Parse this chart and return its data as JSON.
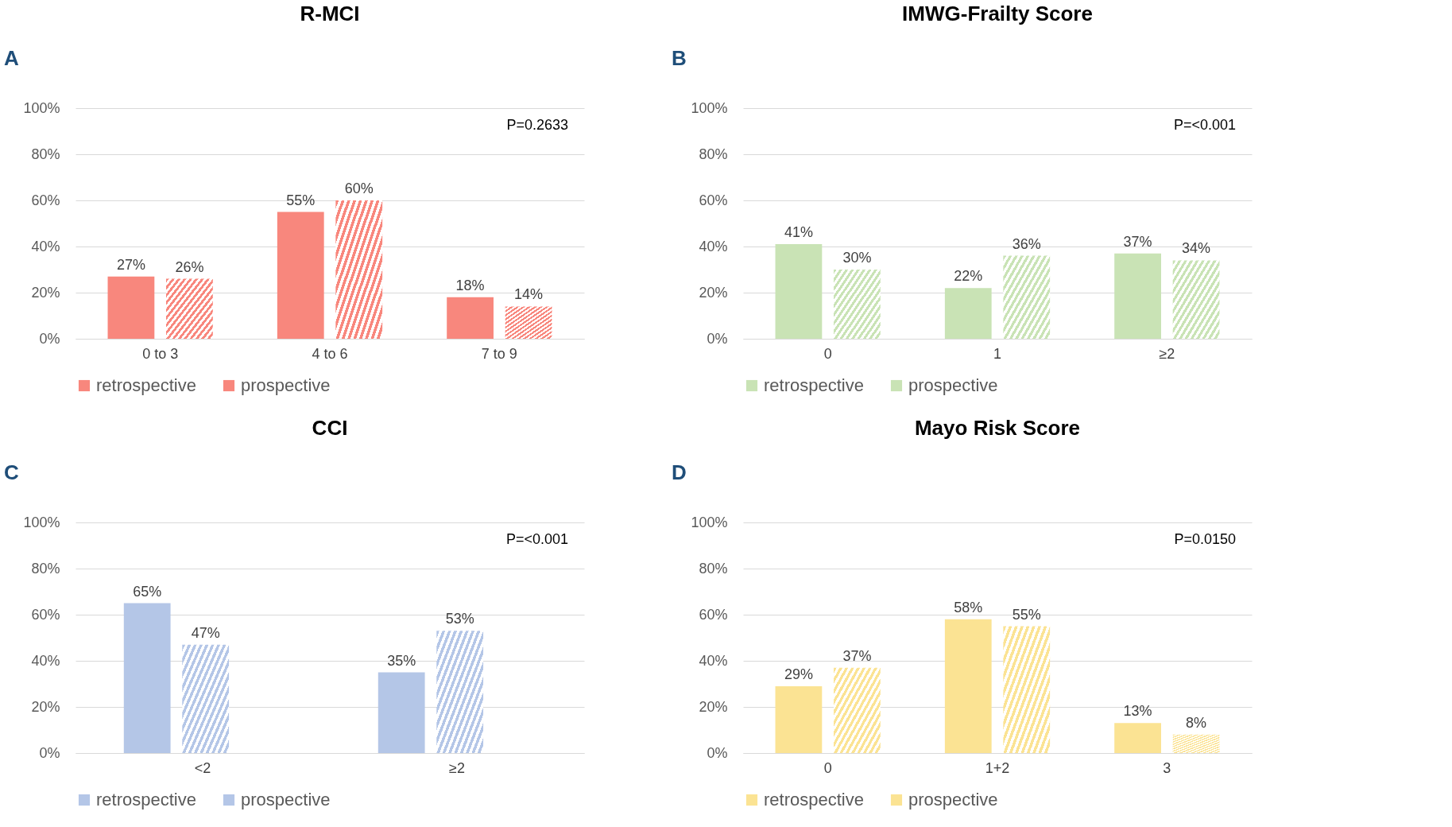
{
  "chart_data": [
    {
      "type": "bar",
      "title": "R-MCI",
      "categories": [
        "0 to 3",
        "4 to 6",
        "7 to 9"
      ],
      "series": [
        {
          "name": "retrospective",
          "color": "#f8877d",
          "values": [
            27,
            55,
            18
          ],
          "value_labels": [
            "27%",
            "55%",
            "18%"
          ]
        },
        {
          "name": "prospective",
          "color": "#f8877d",
          "values": [
            26,
            60,
            14
          ],
          "value_labels": [
            "26%",
            "60%",
            "14%"
          ]
        }
      ],
      "ylim": [
        0,
        100
      ],
      "yticks": [
        {
          "value": 0,
          "label": "0%"
        },
        {
          "value": 20,
          "label": "20%"
        },
        {
          "value": 40,
          "label": "40%"
        },
        {
          "value": 60,
          "label": "60%"
        },
        {
          "value": 80,
          "label": "80%"
        },
        {
          "value": 100,
          "label": "100%"
        }
      ],
      "grid": "y",
      "legend": "bottom",
      "annotations": [
        "A",
        "P=0.2633"
      ]
    },
    {
      "type": "bar",
      "title": "IMWG-Frailty Score",
      "categories": [
        "0",
        "1",
        "≥2"
      ],
      "series": [
        {
          "name": "retrospective",
          "color": "#c9e3b5",
          "values": [
            41,
            22,
            37
          ],
          "value_labels": [
            "41%",
            "22%",
            "37%"
          ]
        },
        {
          "name": "prospective",
          "color": "#c9e3b5",
          "values": [
            30,
            36,
            34
          ],
          "value_labels": [
            "30%",
            "36%",
            "34%"
          ]
        }
      ],
      "ylim": [
        0,
        100
      ],
      "yticks": [
        {
          "value": 0,
          "label": "0%"
        },
        {
          "value": 20,
          "label": "20%"
        },
        {
          "value": 40,
          "label": "40%"
        },
        {
          "value": 60,
          "label": "60%"
        },
        {
          "value": 80,
          "label": "80%"
        },
        {
          "value": 100,
          "label": "100%"
        }
      ],
      "grid": "y",
      "legend": "bottom",
      "annotations": [
        "B",
        "P=<0.001"
      ]
    },
    {
      "type": "bar",
      "title": "CCI",
      "categories": [
        "<2",
        "≥2"
      ],
      "series": [
        {
          "name": "retrospective",
          "color": "#b4c6e7",
          "values": [
            65,
            35
          ],
          "value_labels": [
            "65%",
            "35%"
          ]
        },
        {
          "name": "prospective",
          "color": "#b4c6e7",
          "values": [
            47,
            53
          ],
          "value_labels": [
            "47%",
            "53%"
          ]
        }
      ],
      "ylim": [
        0,
        100
      ],
      "yticks": [
        {
          "value": 0,
          "label": "0%"
        },
        {
          "value": 20,
          "label": "20%"
        },
        {
          "value": 40,
          "label": "40%"
        },
        {
          "value": 60,
          "label": "60%"
        },
        {
          "value": 80,
          "label": "80%"
        },
        {
          "value": 100,
          "label": "100%"
        }
      ],
      "grid": "y",
      "legend": "bottom",
      "annotations": [
        "C",
        "P=<0.001"
      ]
    },
    {
      "type": "bar",
      "title": "Mayo Risk Score",
      "categories": [
        "0",
        "1+2",
        "3"
      ],
      "series": [
        {
          "name": "retrospective",
          "color": "#fbe393",
          "values": [
            29,
            58,
            13
          ],
          "value_labels": [
            "29%",
            "58%",
            "13%"
          ]
        },
        {
          "name": "prospective",
          "color": "#fbe393",
          "values": [
            37,
            55,
            8
          ],
          "value_labels": [
            "37%",
            "55%",
            "8%"
          ]
        }
      ],
      "ylim": [
        0,
        100
      ],
      "yticks": [
        {
          "value": 0,
          "label": "0%"
        },
        {
          "value": 20,
          "label": "20%"
        },
        {
          "value": 40,
          "label": "40%"
        },
        {
          "value": 60,
          "label": "60%"
        },
        {
          "value": 80,
          "label": "80%"
        },
        {
          "value": 100,
          "label": "100%"
        }
      ],
      "grid": "y",
      "legend": "bottom",
      "annotations": [
        "D",
        "P=0.0150"
      ]
    }
  ]
}
